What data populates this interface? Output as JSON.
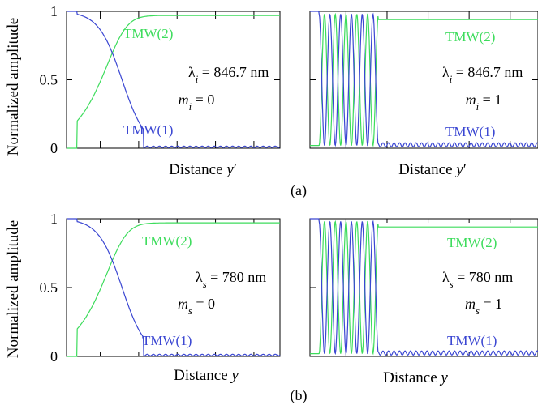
{
  "figure": {
    "ylabel": "Normalized amplitude",
    "panel_labels": [
      "(a)",
      "(b)"
    ]
  },
  "colors": {
    "tmw1": "#3a46d2",
    "tmw2": "#3ddc5c"
  },
  "chart_data": [
    {
      "type": "line",
      "row": 0,
      "xlabel_text": "Distance ",
      "xlabel_var": "y",
      "xlabel_prime": "′",
      "ylim": [
        0,
        1
      ],
      "yticks": [
        "0",
        "0.5",
        "1"
      ],
      "wl_sym": "λ",
      "wl_sub": "i",
      "wl_val": " = 846.7 nm",
      "m_sym": "m",
      "m_sub": "i",
      "m_val": " = 0",
      "mode": 0,
      "series": [
        {
          "name": "TMW(1)",
          "color": "#3a46d2"
        },
        {
          "name": "TMW(2)",
          "color": "#3ddc5c"
        }
      ]
    },
    {
      "type": "line",
      "row": 0,
      "xlabel_text": "Distance ",
      "xlabel_var": "y",
      "xlabel_prime": "′",
      "ylim": [
        0,
        1
      ],
      "wl_sym": "λ",
      "wl_sub": "i",
      "wl_val": " = 846.7 nm",
      "m_sym": "m",
      "m_sub": "i",
      "m_val": " = 1",
      "mode": 1,
      "series": [
        {
          "name": "TMW(2)",
          "color": "#3ddc5c"
        },
        {
          "name": "TMW(1)",
          "color": "#3a46d2"
        }
      ]
    },
    {
      "type": "line",
      "row": 1,
      "xlabel_text": "Distance ",
      "xlabel_var": "y",
      "xlabel_prime": "",
      "ylim": [
        0,
        1
      ],
      "yticks": [
        "0",
        "0.5",
        "1"
      ],
      "wl_sym": "λ",
      "wl_sub": "s",
      "wl_val": " = 780 nm",
      "m_sym": "m",
      "m_sub": "s",
      "m_val": " = 0",
      "mode": 0,
      "series": [
        {
          "name": "TMW(2)",
          "color": "#3ddc5c"
        },
        {
          "name": "TMW(1)",
          "color": "#3a46d2"
        }
      ]
    },
    {
      "type": "line",
      "row": 1,
      "xlabel_text": "Distance ",
      "xlabel_var": "y",
      "xlabel_prime": "",
      "ylim": [
        0,
        1
      ],
      "wl_sym": "λ",
      "wl_sub": "s",
      "wl_val": " = 780 nm",
      "m_sym": "m",
      "m_sub": "s",
      "m_val": " = 1",
      "mode": 1,
      "series": [
        {
          "name": "TMW(2)",
          "color": "#3ddc5c"
        },
        {
          "name": "TMW(1)",
          "color": "#3a46d2"
        }
      ]
    }
  ]
}
